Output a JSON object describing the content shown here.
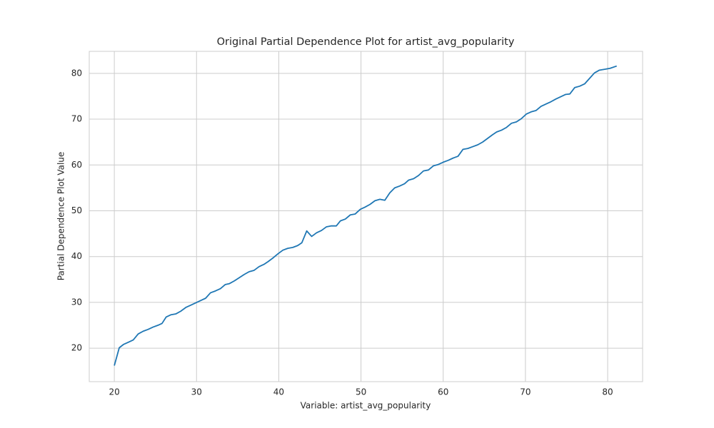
{
  "chart_data": {
    "type": "line",
    "title": "Original Partial Dependence Plot for artist_avg_popularity",
    "x_label": "Variable: artist_avg_popularity",
    "y_label": "Partial Dependence Plot Value",
    "x": [
      20,
      20.6,
      21.1,
      21.7,
      22.3,
      22.9,
      23.5,
      24.1,
      24.7,
      25.3,
      25.8,
      26.3,
      26.9,
      27.5,
      28.1,
      28.7,
      29.3,
      29.9,
      30.5,
      31.1,
      31.7,
      32.3,
      32.9,
      33.5,
      34.0,
      34.6,
      35.2,
      35.8,
      36.4,
      37.0,
      37.6,
      38.2,
      38.7,
      39.3,
      39.9,
      40.5,
      41.1,
      41.7,
      42.3,
      42.8,
      43.4,
      44.0,
      44.6,
      45.2,
      45.8,
      46.4,
      47.0,
      47.5,
      48.1,
      48.7,
      49.3,
      49.9,
      50.5,
      51.1,
      51.7,
      52.3,
      52.9,
      53.5,
      54.1,
      54.7,
      55.3,
      55.8,
      56.4,
      57.0,
      57.6,
      58.2,
      58.8,
      59.4,
      60.0,
      60.6,
      61.2,
      61.8,
      62.4,
      63.0,
      63.6,
      64.2,
      64.8,
      65.4,
      66.0,
      66.5,
      67.1,
      67.7,
      68.3,
      68.9,
      69.5,
      70.1,
      70.7,
      71.3,
      71.9,
      72.5,
      73.1,
      73.7,
      74.3,
      74.9,
      75.4,
      76.0,
      76.6,
      77.2,
      77.8,
      78.4,
      79.0,
      79.7,
      80.3,
      81.1
    ],
    "series": [
      {
        "name": "artist_avg_popularity",
        "color": "#1f77b4",
        "values": [
          16.2,
          20.1,
          20.8,
          21.3,
          21.8,
          23.1,
          23.7,
          24.1,
          24.6,
          25.0,
          25.4,
          26.8,
          27.3,
          27.5,
          28.1,
          28.9,
          29.4,
          29.9,
          30.4,
          30.9,
          32.1,
          32.5,
          33.0,
          33.9,
          34.1,
          34.7,
          35.4,
          36.1,
          36.7,
          37.0,
          37.8,
          38.3,
          38.9,
          39.7,
          40.6,
          41.4,
          41.8,
          42.0,
          42.4,
          43.0,
          45.6,
          44.4,
          45.2,
          45.7,
          46.5,
          46.7,
          46.7,
          47.8,
          48.2,
          49.1,
          49.3,
          50.3,
          50.8,
          51.4,
          52.2,
          52.5,
          52.3,
          53.9,
          55.0,
          55.4,
          55.9,
          56.7,
          57.0,
          57.7,
          58.7,
          58.9,
          59.8,
          60.1,
          60.6,
          61.0,
          61.5,
          61.9,
          63.4,
          63.6,
          64.0,
          64.4,
          65.0,
          65.8,
          66.6,
          67.2,
          67.6,
          68.2,
          69.1,
          69.4,
          70.1,
          71.1,
          71.6,
          71.9,
          72.8,
          73.3,
          73.8,
          74.4,
          74.9,
          75.4,
          75.5,
          76.9,
          77.2,
          77.7,
          78.9,
          80.1,
          80.7,
          80.9,
          81.1,
          81.6
        ]
      }
    ],
    "xlim": [
      16.95,
      84.25
    ],
    "ylim": [
      12.7,
      84.8
    ],
    "xticks": [
      20,
      30,
      40,
      50,
      60,
      70,
      80
    ],
    "yticks": [
      20,
      30,
      40,
      50,
      60,
      70,
      80
    ],
    "grid": true
  }
}
